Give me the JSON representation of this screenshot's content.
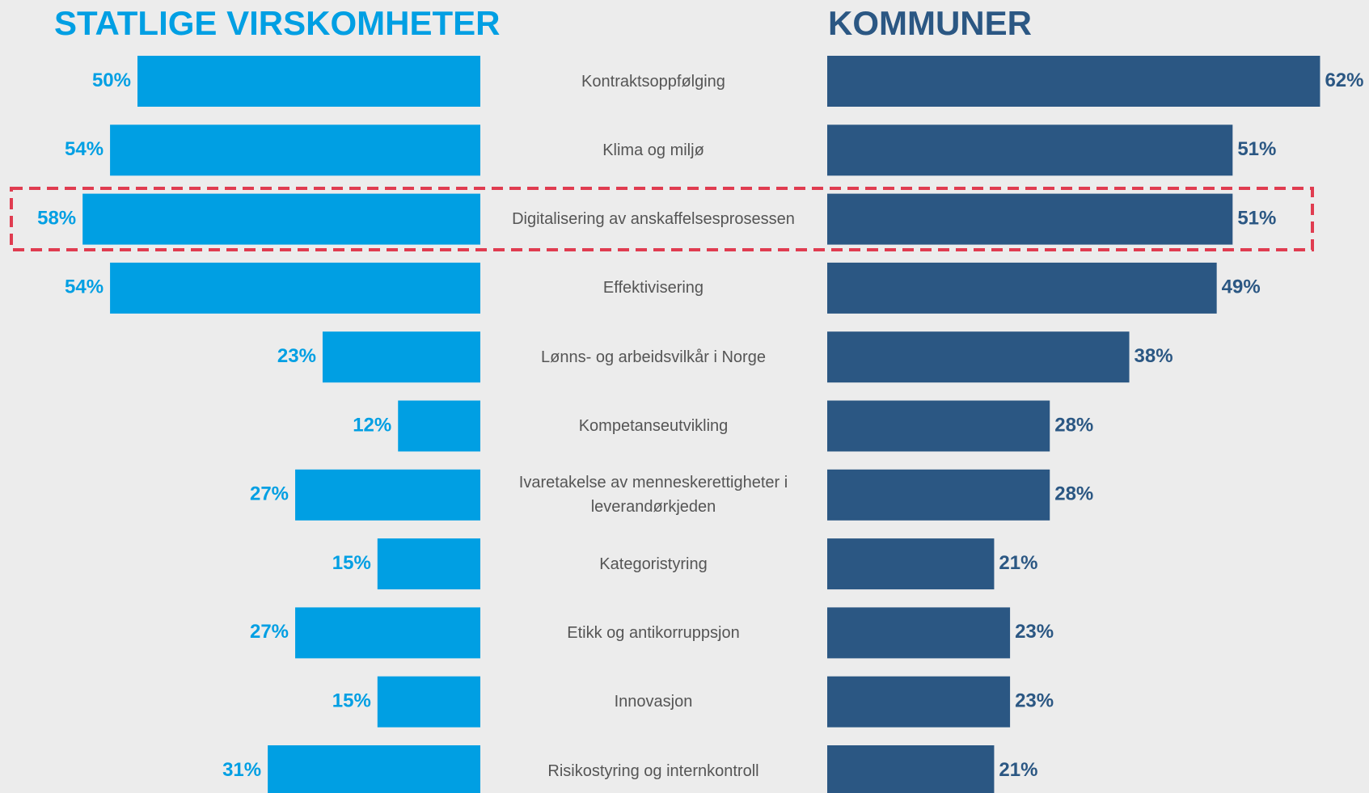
{
  "chart_data": {
    "type": "butterfly-bar",
    "categories": [
      "Kontraktsoppfølging",
      "Klima og miljø",
      "Digitalisering av anskaffelsesprosessen",
      "Effektivisering",
      "Lønns- og arbeidsvilkår i Norge",
      "Kompetanseutvikling",
      "Ivaretakelse av menneskerettigheter i leverandørkjeden",
      "Kategoristyring",
      "Etikk og antikorruppsjon",
      "Innovasjon",
      "Risikostyring og internkontroll"
    ],
    "series": [
      {
        "name": "STATLIGE VIRSKOMHETER",
        "color": "#009fe3",
        "values": [
          50,
          54,
          58,
          54,
          23,
          12,
          27,
          15,
          27,
          15,
          31
        ],
        "value_labels": [
          "50%",
          "54%",
          "58%",
          "54%",
          "23%",
          "12%",
          "27%",
          "15%",
          "27%",
          "15%",
          "31%"
        ]
      },
      {
        "name": "KOMMUNER",
        "color": "#2b5783",
        "values": [
          62,
          51,
          51,
          49,
          38,
          28,
          28,
          21,
          23,
          23,
          21
        ],
        "value_labels": [
          "62%",
          "51%",
          "51%",
          "49%",
          "38%",
          "28%",
          "28%",
          "21%",
          "23%",
          "23%",
          "21%"
        ]
      }
    ]
  }
}
